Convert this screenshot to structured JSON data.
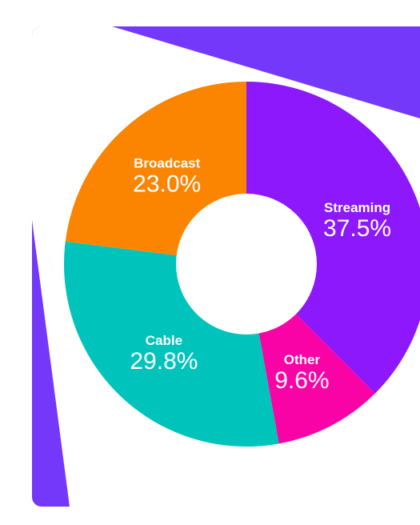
{
  "colors": {
    "background_panel": "#7438fa",
    "page": "#ffffff",
    "hole": "#ffffff"
  },
  "chart_data": {
    "type": "pie",
    "style": "donut",
    "title": "",
    "slices": [
      {
        "label": "Streaming",
        "value": 37.5,
        "display": "37.5%",
        "color": "#8c18fb"
      },
      {
        "label": "Other",
        "value": 9.6,
        "display": "9.6%",
        "color": "#f903a6"
      },
      {
        "label": "Cable",
        "value": 29.8,
        "display": "29.8%",
        "color": "#00c4bb"
      },
      {
        "label": "Broadcast",
        "value": 23.0,
        "display": "23.0%",
        "color": "#fb8500"
      }
    ],
    "start": "12 o'clock",
    "direction": "clockwise",
    "legend": "none"
  }
}
